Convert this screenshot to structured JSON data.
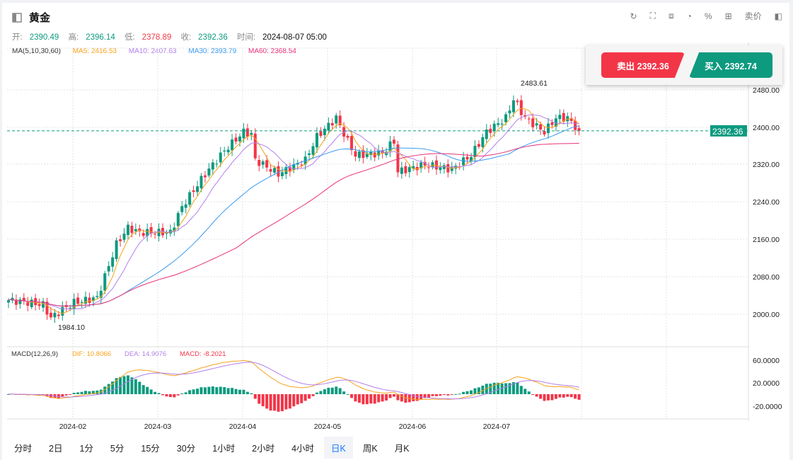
{
  "header": {
    "title": "黄金",
    "tools": [
      "refresh-icon",
      "crop-icon",
      "chart-board-icon",
      "pie-icon",
      "percent-icon",
      "grid-icon"
    ],
    "price_type": "卖价"
  },
  "ohlc": {
    "open_label": "开:",
    "open": "2390.49",
    "high_label": "高:",
    "high": "2396.14",
    "low_label": "低:",
    "low": "2378.89",
    "close_label": "收:",
    "close": "2392.36",
    "time_label": "时间:",
    "time": "2024-08-07 05:00"
  },
  "ma": {
    "label": "MA(5,10,30,60)",
    "ma5": "MA5: 2416.53",
    "ma10": "MA10: 2407.63",
    "ma30": "MA30: 2393.79",
    "ma60": "MA60: 2368.54"
  },
  "trade": {
    "sell": "卖出 2392.36",
    "buy": "买入 2392.74"
  },
  "macd": {
    "label": "MACD(12,26,9)",
    "dif": "DIF: 10.8066",
    "dea": "DEA: 14.9076",
    "macd": "MACD: -8.2021"
  },
  "colors": {
    "up": "#0d9a7f",
    "down": "#f33548",
    "ma5": "#f7a21b",
    "ma10": "#b37feb",
    "ma30": "#3a9af0",
    "ma60": "#e9307a"
  },
  "tabs": [
    "分时",
    "2日",
    "1分",
    "5分",
    "15分",
    "30分",
    "1小时",
    "2小时",
    "4小时",
    "日K",
    "周K",
    "月K"
  ],
  "active_tab": "日K",
  "chart_data": {
    "type": "candlestick",
    "y_ticks": [
      "2480.00",
      "2400.00",
      "2320.00",
      "2240.00",
      "2160.00",
      "2080.00",
      "2000.00"
    ],
    "ylim": [
      1960,
      2520
    ],
    "x_ticks": [
      "2024-02",
      "2024-03",
      "2024-04",
      "2024-05",
      "2024-06",
      "2024-07"
    ],
    "last_price": "2392.36",
    "max_label": "2483.61",
    "min_label": "1984.10",
    "macd_ticks": [
      "60.0000",
      "20.0000",
      "-20.0000"
    ],
    "close_keypoints": [
      [
        0,
        2030
      ],
      [
        5,
        2025
      ],
      [
        9,
        2020
      ],
      [
        11,
        1992
      ],
      [
        14,
        2010
      ],
      [
        17,
        2025
      ],
      [
        23,
        2035
      ],
      [
        28,
        2150
      ],
      [
        31,
        2185
      ],
      [
        34,
        2175
      ],
      [
        42,
        2175
      ],
      [
        45,
        2230
      ],
      [
        51,
        2300
      ],
      [
        56,
        2350
      ],
      [
        61,
        2390
      ],
      [
        63,
        2385
      ],
      [
        64,
        2330
      ],
      [
        70,
        2300
      ],
      [
        77,
        2330
      ],
      [
        80,
        2380
      ],
      [
        85,
        2420
      ],
      [
        88,
        2370
      ],
      [
        90,
        2340
      ],
      [
        97,
        2345
      ],
      [
        100,
        2370
      ],
      [
        101,
        2305
      ],
      [
        108,
        2320
      ],
      [
        115,
        2310
      ],
      [
        120,
        2340
      ],
      [
        124,
        2390
      ],
      [
        129,
        2420
      ],
      [
        131,
        2460
      ],
      [
        134,
        2420
      ],
      [
        139,
        2390
      ],
      [
        142,
        2420
      ],
      [
        145,
        2420
      ],
      [
        148,
        2392.36
      ]
    ]
  }
}
